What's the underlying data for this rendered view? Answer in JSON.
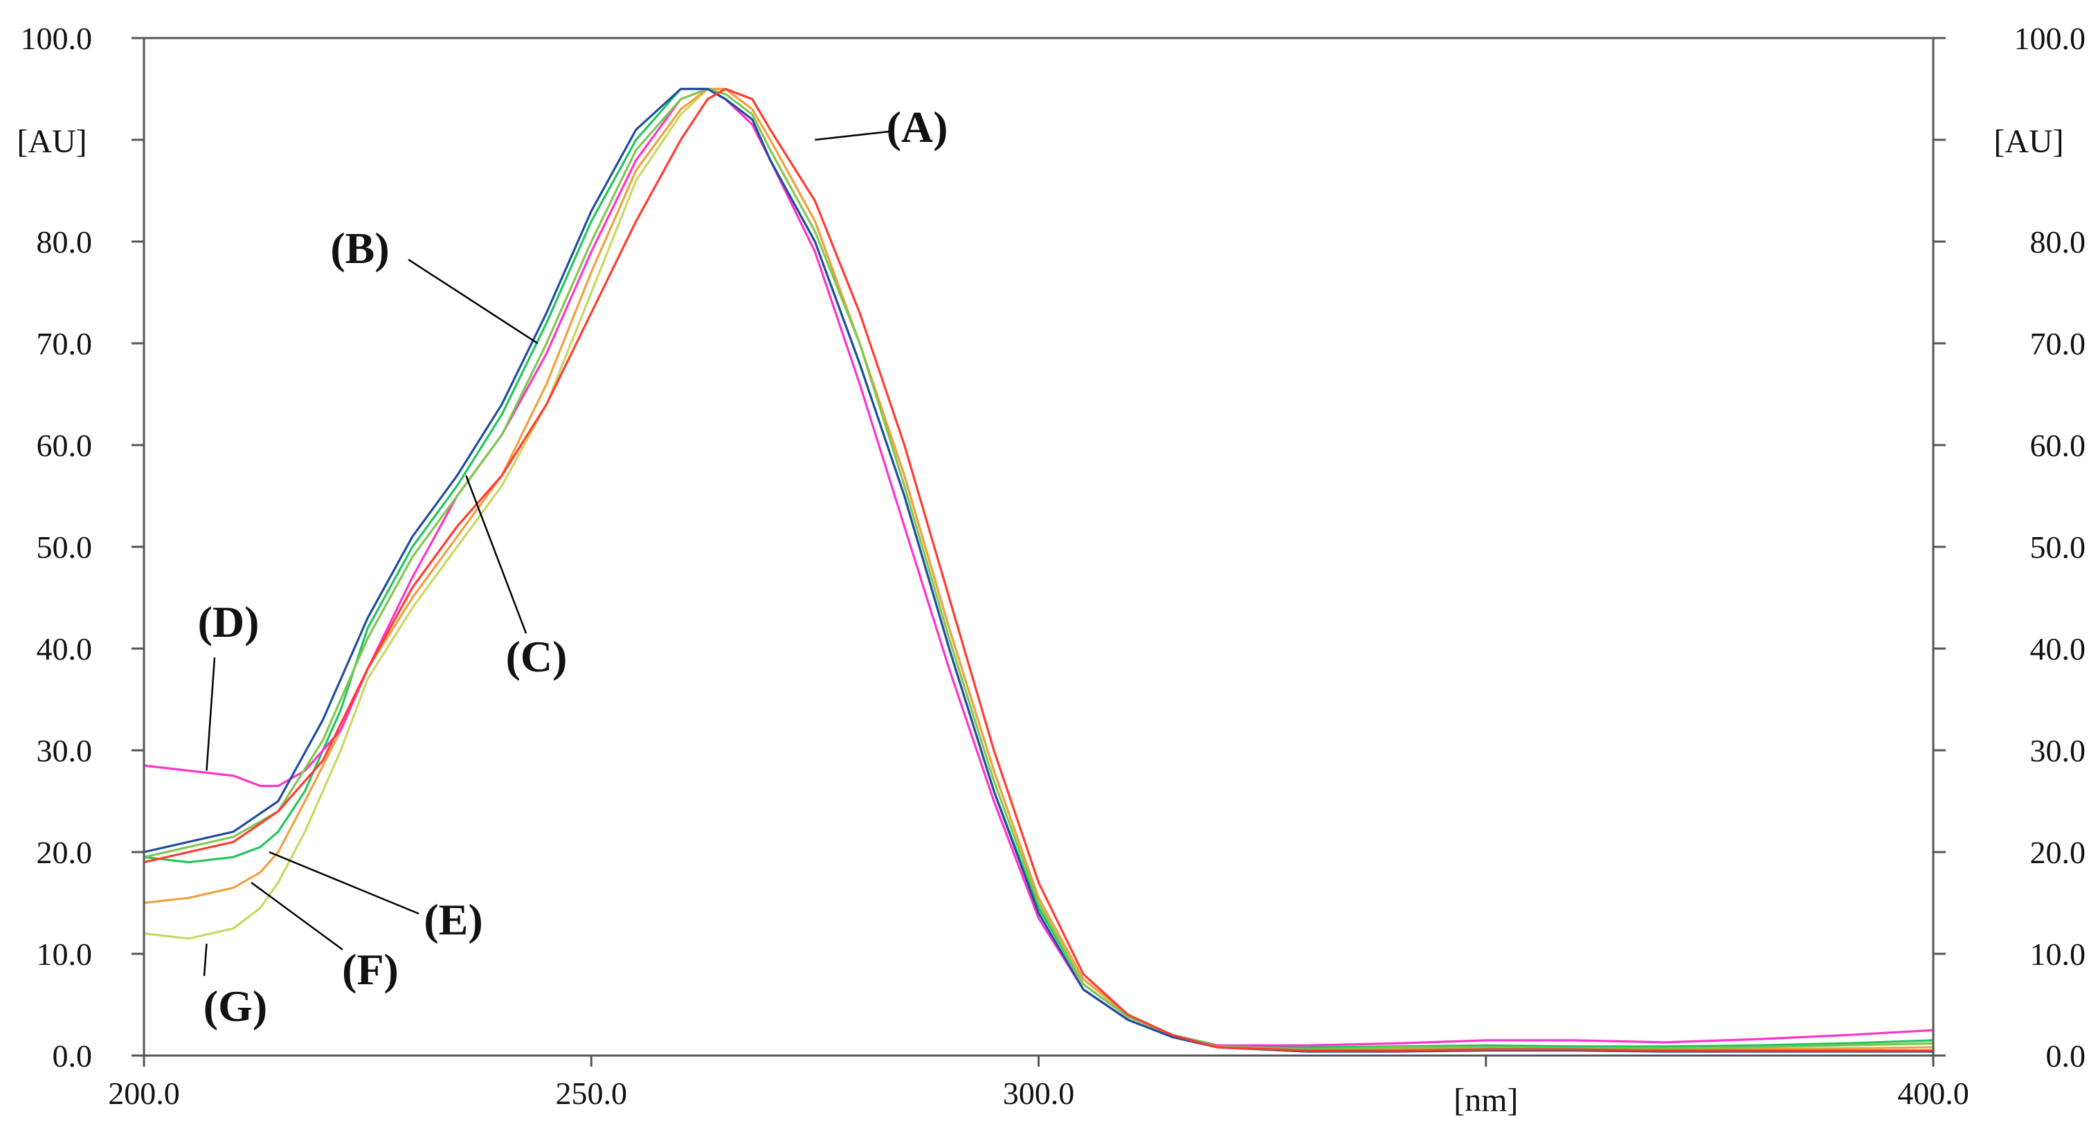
{
  "chart_data": {
    "type": "line",
    "title": "",
    "xlabel": "[nm]",
    "ylabel_left": "[AU]",
    "ylabel_right": "[AU]",
    "xlim": [
      200,
      400
    ],
    "ylim": [
      0,
      100
    ],
    "x_ticks": [
      {
        "value": 200,
        "label": "200.0"
      },
      {
        "value": 250,
        "label": "250.0"
      },
      {
        "value": 300,
        "label": "300.0"
      },
      {
        "value": 350,
        "label": ""
      },
      {
        "value": 400,
        "label": "400.0"
      }
    ],
    "y_ticks": [
      {
        "value": 0,
        "label": "0.0"
      },
      {
        "value": 10,
        "label": "10.0"
      },
      {
        "value": 20,
        "label": "20.0"
      },
      {
        "value": 30,
        "label": "30.0"
      },
      {
        "value": 40,
        "label": "40.0"
      },
      {
        "value": 50,
        "label": "50.0"
      },
      {
        "value": 60,
        "label": "60.0"
      },
      {
        "value": 70,
        "label": "70.0"
      },
      {
        "value": 80,
        "label": "80.0"
      },
      {
        "value": 90,
        "label": ""
      },
      {
        "value": 100,
        "label": "100.0"
      }
    ],
    "series": [
      {
        "name": "A",
        "color": "#ff3b30",
        "x": [
          200,
          205,
          210,
          215,
          220,
          225,
          230,
          235,
          240,
          245,
          250,
          255,
          260,
          263,
          265,
          268,
          270,
          275,
          280,
          285,
          290,
          295,
          300,
          305,
          310,
          315,
          320,
          330,
          340,
          350,
          360,
          370,
          380,
          390,
          400
        ],
        "y": [
          19,
          20,
          21,
          24,
          29,
          38,
          46,
          52,
          57,
          64,
          73,
          82,
          90,
          94,
          95,
          94,
          91,
          84,
          73,
          60,
          45,
          30,
          17,
          8,
          4,
          2,
          0.8,
          0.5,
          0.5,
          0.6,
          0.6,
          0.5,
          0.5,
          0.5,
          0.5
        ]
      },
      {
        "name": "B",
        "color": "#1f4e9e",
        "x": [
          200,
          205,
          210,
          215,
          220,
          225,
          230,
          235,
          240,
          245,
          250,
          255,
          260,
          263,
          265,
          268,
          270,
          275,
          280,
          285,
          290,
          295,
          300,
          305,
          310,
          315,
          320,
          330,
          340,
          350,
          360,
          370,
          380,
          390,
          400
        ],
        "y": [
          20,
          21,
          22,
          25,
          33,
          43,
          51,
          57,
          64,
          73,
          83,
          91,
          95,
          95,
          94,
          92,
          88,
          80,
          68,
          55,
          40,
          26,
          14,
          6.5,
          3.5,
          1.8,
          0.8,
          0.4,
          0.4,
          0.5,
          0.5,
          0.4,
          0.4,
          0.4,
          0.4
        ]
      },
      {
        "name": "C",
        "color": "#7ec850",
        "x": [
          200,
          205,
          210,
          215,
          220,
          225,
          230,
          235,
          240,
          245,
          250,
          255,
          260,
          263,
          265,
          268,
          270,
          275,
          280,
          285,
          290,
          295,
          300,
          305,
          310,
          315,
          320,
          330,
          340,
          350,
          360,
          370,
          380,
          390,
          400
        ],
        "y": [
          19.5,
          20.5,
          21.5,
          24,
          31,
          41,
          49,
          55,
          61,
          70,
          80,
          89,
          94,
          95,
          94.5,
          92.5,
          89,
          81,
          70,
          56,
          41,
          27,
          15,
          7,
          3.8,
          2,
          0.9,
          0.6,
          0.8,
          0.8,
          0.7,
          0.7,
          0.8,
          1,
          1.2
        ]
      },
      {
        "name": "D",
        "color": "#ff33cc",
        "x": [
          200,
          205,
          210,
          213,
          215,
          218,
          222,
          225,
          230,
          235,
          240,
          245,
          250,
          255,
          260,
          263,
          265,
          268,
          270,
          275,
          280,
          285,
          290,
          295,
          300,
          305,
          310,
          315,
          320,
          330,
          340,
          350,
          360,
          370,
          380,
          390,
          400
        ],
        "y": [
          28.5,
          28,
          27.5,
          26.5,
          26.5,
          28,
          32,
          38,
          47,
          55,
          61,
          69,
          79,
          88,
          94,
          95,
          94,
          91.5,
          88,
          79,
          66,
          52,
          38,
          25,
          13.5,
          6.5,
          3.5,
          1.8,
          1,
          1,
          1.2,
          1.5,
          1.5,
          1.3,
          1.6,
          2,
          2.5
        ]
      },
      {
        "name": "E",
        "color": "#22c55e",
        "x": [
          200,
          205,
          210,
          213,
          215,
          218,
          222,
          225,
          230,
          235,
          240,
          245,
          250,
          255,
          260,
          263,
          265,
          268,
          270,
          275,
          280,
          285,
          290,
          295,
          300,
          305,
          310,
          315,
          320,
          330,
          340,
          350,
          360,
          370,
          380,
          390,
          400
        ],
        "y": [
          19.5,
          19,
          19.5,
          20.5,
          22,
          26,
          34,
          42,
          50,
          56,
          63,
          72,
          82,
          90,
          95,
          95,
          94,
          92,
          88,
          80,
          68,
          55,
          40,
          26,
          14.5,
          7,
          3.8,
          2,
          1,
          0.8,
          0.9,
          1,
          0.9,
          0.9,
          1,
          1.2,
          1.5
        ]
      },
      {
        "name": "F",
        "color": "#f0a040",
        "x": [
          200,
          205,
          210,
          213,
          215,
          218,
          222,
          225,
          230,
          235,
          240,
          245,
          250,
          255,
          260,
          263,
          265,
          268,
          270,
          275,
          280,
          285,
          290,
          295,
          300,
          305,
          310,
          315,
          320,
          330,
          340,
          350,
          360,
          370,
          380,
          390,
          400
        ],
        "y": [
          15,
          15.5,
          16.5,
          18,
          20,
          25,
          32,
          38,
          45,
          51,
          57,
          66,
          77,
          87,
          93,
          95,
          95,
          93,
          90,
          82,
          70,
          57,
          42,
          28,
          15.5,
          7.5,
          4,
          2,
          1,
          0.6,
          0.6,
          0.6,
          0.6,
          0.6,
          0.6,
          0.7,
          0.8
        ]
      },
      {
        "name": "G",
        "color": "#c8d860",
        "x": [
          200,
          205,
          210,
          213,
          215,
          218,
          222,
          225,
          230,
          235,
          240,
          245,
          250,
          255,
          260,
          263,
          265,
          268,
          270,
          275,
          280,
          285,
          290,
          295,
          300,
          305,
          310,
          315,
          320,
          330,
          340,
          350,
          360,
          370,
          380,
          390,
          400
        ],
        "y": [
          12,
          11.5,
          12.5,
          14.5,
          17,
          22,
          30,
          37,
          44,
          50,
          56,
          64,
          75,
          86,
          92.5,
          95,
          95,
          93,
          90,
          82,
          70,
          57,
          42,
          28,
          15.5,
          7.5,
          4,
          2,
          1,
          0.6,
          0.6,
          0.6,
          0.6,
          0.6,
          0.6,
          0.7,
          0.8
        ]
      }
    ],
    "annotations": [
      {
        "text": "(A)",
        "x": 275,
        "y": 90
      },
      {
        "text": "(B)",
        "x": 244,
        "y": 70
      },
      {
        "text": "(C)",
        "x": 236,
        "y": 57
      },
      {
        "text": "(D)",
        "x": 207,
        "y": 28
      },
      {
        "text": "(E)",
        "x": 214,
        "y": 20
      },
      {
        "text": "(F)",
        "x": 212,
        "y": 17
      },
      {
        "text": "(G)",
        "x": 207,
        "y": 11
      }
    ]
  }
}
